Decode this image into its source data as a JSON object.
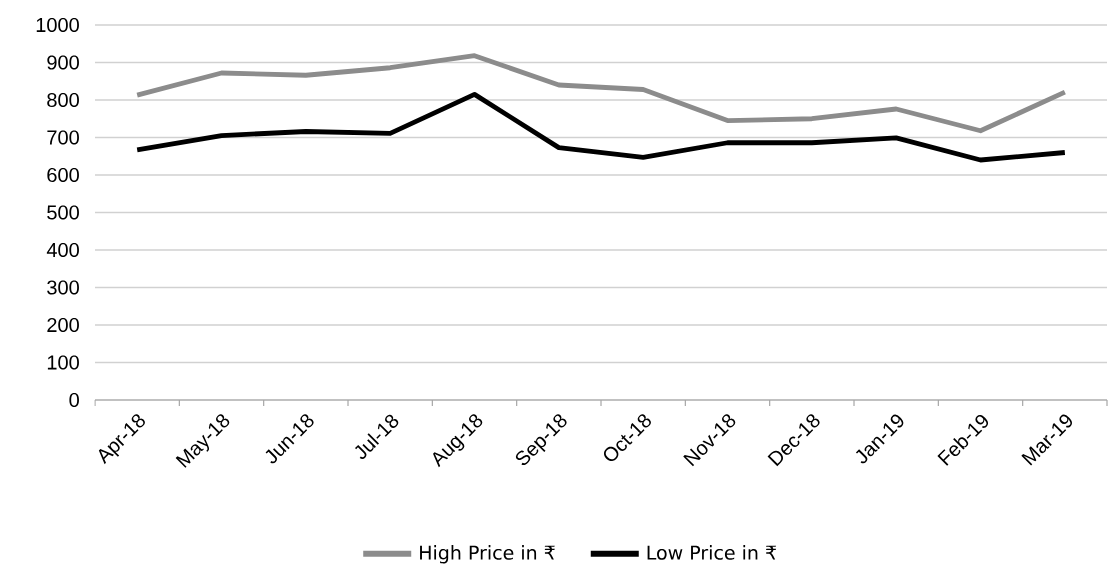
{
  "chart_data": {
    "type": "line",
    "categories": [
      "Apr-18",
      "May-18",
      "Jun-18",
      "Jul-18",
      "Aug-18",
      "Sep-18",
      "Oct-18",
      "Nov-18",
      "Dec-18",
      "Jan-19",
      "Feb-19",
      "Mar-19"
    ],
    "series": [
      {
        "name": "High Price in ₹",
        "color": "#8c8c8c",
        "values": [
          813,
          872,
          866,
          886,
          918,
          840,
          828,
          745,
          750,
          776,
          718,
          821
        ]
      },
      {
        "name": "Low Price in ₹",
        "color": "#000000",
        "values": [
          667,
          705,
          716,
          711,
          815,
          673,
          647,
          686,
          686,
          699,
          640,
          660
        ]
      }
    ],
    "ylim": [
      0,
      1000
    ],
    "yticks": [
      0,
      100,
      200,
      300,
      400,
      500,
      600,
      700,
      800,
      900,
      1000
    ],
    "grid": "y",
    "legend": "bottom",
    "marker": "none",
    "line_style": "solid"
  }
}
